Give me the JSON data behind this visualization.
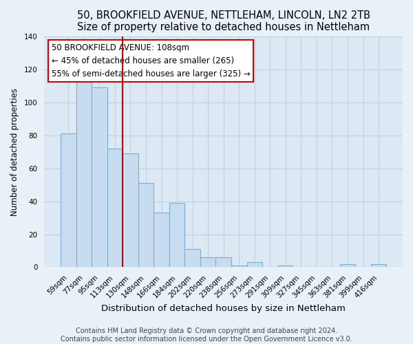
{
  "title1": "50, BROOKFIELD AVENUE, NETTLEHAM, LINCOLN, LN2 2TB",
  "title2": "Size of property relative to detached houses in Nettleham",
  "xlabel": "Distribution of detached houses by size in Nettleham",
  "ylabel": "Number of detached properties",
  "bar_labels": [
    "59sqm",
    "77sqm",
    "95sqm",
    "113sqm",
    "130sqm",
    "148sqm",
    "166sqm",
    "184sqm",
    "202sqm",
    "220sqm",
    "238sqm",
    "256sqm",
    "273sqm",
    "291sqm",
    "309sqm",
    "327sqm",
    "345sqm",
    "363sqm",
    "381sqm",
    "399sqm",
    "416sqm"
  ],
  "bar_values": [
    81,
    113,
    109,
    72,
    69,
    51,
    33,
    39,
    11,
    6,
    6,
    1,
    3,
    0,
    1,
    0,
    0,
    0,
    2,
    0,
    2
  ],
  "bar_color": "#c8dcf0",
  "bar_edge_color": "#7aaed0",
  "vline_x": 3.5,
  "vline_color": "#cc0000",
  "ylim": [
    0,
    140
  ],
  "annotation_title": "50 BROOKFIELD AVENUE: 108sqm",
  "annotation_line1": "← 45% of detached houses are smaller (265)",
  "annotation_line2": "55% of semi-detached houses are larger (325) →",
  "annotation_box_color": "#ffffff",
  "annotation_box_edge": "#cc0000",
  "footer1": "Contains HM Land Registry data © Crown copyright and database right 2024.",
  "footer2": "Contains public sector information licensed under the Open Government Licence v3.0.",
  "bg_color": "#e8f0f8",
  "plot_bg_color": "#dce8f4",
  "grid_color": "#c0d0e0",
  "title1_fontsize": 10.5,
  "title2_fontsize": 9.5,
  "xlabel_fontsize": 9.5,
  "ylabel_fontsize": 8.5,
  "tick_fontsize": 7.5,
  "footer_fontsize": 7,
  "annotation_fontsize": 8.5
}
